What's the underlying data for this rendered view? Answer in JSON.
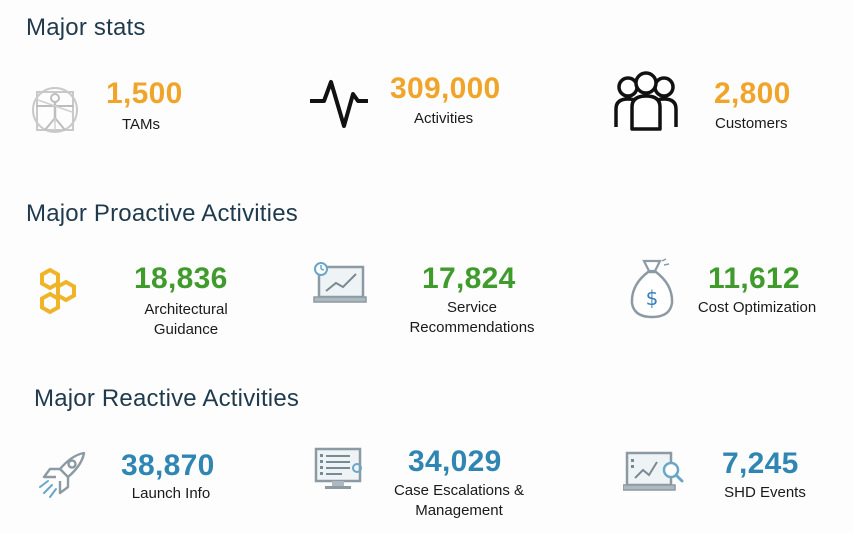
{
  "colors": {
    "heading": "#1f3a4d",
    "major_stats_value": "#f0a52a",
    "proactive_value": "#3f9b2c",
    "reactive_value": "#2f86b3",
    "label": "#1a1a1a"
  },
  "major_stats": {
    "title": "Major stats",
    "items": [
      {
        "icon": "vitruvian-man-icon",
        "value": "1,500",
        "label": "TAMs"
      },
      {
        "icon": "activity-pulse-icon",
        "value": "309,000",
        "label": "Activities"
      },
      {
        "icon": "people-group-icon",
        "value": "2,800",
        "label": "Customers"
      }
    ]
  },
  "proactive": {
    "title": "Major Proactive Activities",
    "items": [
      {
        "icon": "hexagons-icon",
        "value": "18,836",
        "label_line1": "Architectural",
        "label_line2": "Guidance"
      },
      {
        "icon": "monitor-chart-icon",
        "value": "17,824",
        "label_line1": "Service",
        "label_line2": "Recommendations"
      },
      {
        "icon": "money-bag-icon",
        "value": "11,612",
        "label_line1": "Cost Optimization"
      }
    ]
  },
  "reactive": {
    "title": "Major Reactive Activities",
    "items": [
      {
        "icon": "rocket-icon",
        "value": "38,870",
        "label_line1": "Launch Info"
      },
      {
        "icon": "monitor-list-icon",
        "value": "34,029",
        "label_line1": "Case Escalations &",
        "label_line2": "Management"
      },
      {
        "icon": "monitor-search-icon",
        "value": "7,245",
        "label_line1": "SHD Events"
      }
    ]
  }
}
